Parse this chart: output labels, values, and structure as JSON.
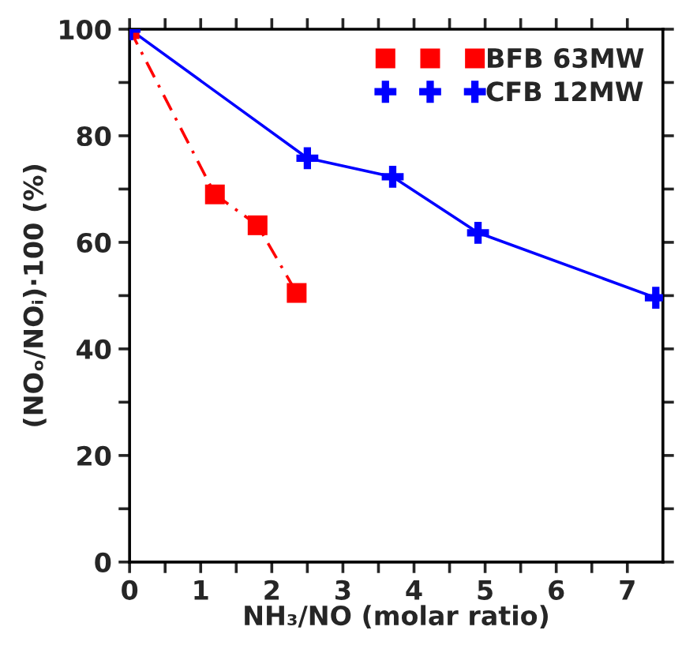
{
  "chart_data": {
    "type": "line",
    "xlabel": "NH₃/NO (molar ratio)",
    "ylabel": "(NOₒ/NOᵢ)·100 (%)",
    "xlim": [
      0,
      7.5
    ],
    "ylim": [
      0,
      100
    ],
    "xticks": [
      0,
      {
        "value": 0.5,
        "label": null
      },
      1,
      {
        "value": 1.5,
        "label": null
      },
      2,
      {
        "value": 2.5,
        "label": null
      },
      3,
      {
        "value": 3.5,
        "label": null
      },
      4,
      {
        "value": 4.5,
        "label": null
      },
      5,
      {
        "value": 5.5,
        "label": null
      },
      6,
      {
        "value": 6.5,
        "label": null
      },
      7
    ],
    "yticks": [
      0,
      {
        "value": 10,
        "label": null
      },
      20,
      {
        "value": 30,
        "label": null
      },
      40,
      {
        "value": 50,
        "label": null
      },
      60,
      {
        "value": 70,
        "label": null
      },
      80,
      {
        "value": 90,
        "label": null
      },
      100
    ],
    "grid": false,
    "legend": "top right",
    "series": [
      {
        "name": "BFB 63MW",
        "color": "#ff0000",
        "marker": "square",
        "line_style": "dashed",
        "x": [
          0,
          1.2,
          1.8,
          2.35
        ],
        "values": [
          100,
          69,
          63.2,
          50.5
        ]
      },
      {
        "name": "CFB 12MW",
        "color": "#0000ff",
        "marker": "cross",
        "line_style": "solid",
        "x": [
          0,
          2.5,
          3.7,
          4.9,
          7.4
        ],
        "values": [
          100,
          75.8,
          72.3,
          61.8,
          49.6
        ]
      }
    ]
  }
}
